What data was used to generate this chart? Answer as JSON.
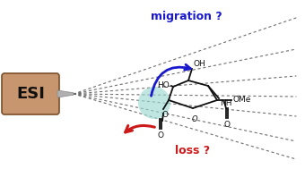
{
  "bg_color": "#ffffff",
  "esi_box_color": "#c8966e",
  "esi_box_edge": "#7a4f2a",
  "esi_text": "ESI",
  "esi_text_color": "#111111",
  "migration_text": "migration ?",
  "migration_color": "#1a1acc",
  "loss_text": "loss ?",
  "loss_color": "#cc1a1a",
  "highlight_color": "#9dd9d2",
  "arrow_blue_color": "#1a1acc",
  "arrow_red_color": "#cc1a1a",
  "dotted_line_color": "#666666",
  "structure_color": "#111111",
  "figsize": [
    3.4,
    1.89
  ],
  "dpi": 100,
  "needle_color": "#b0b0b0",
  "needle_edge_color": "#888888"
}
